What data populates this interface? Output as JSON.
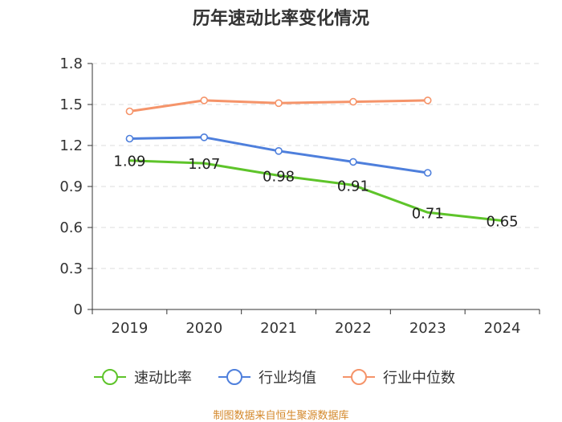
{
  "chart_data": {
    "type": "line",
    "title": "历年速动比率变化情况",
    "xlabel": "",
    "ylabel": "",
    "categories": [
      "2019",
      "2020",
      "2021",
      "2022",
      "2023",
      "2024"
    ],
    "ylim": [
      0,
      1.8
    ],
    "yticks": [
      "0",
      "0.3",
      "0.6",
      "0.9",
      "1.2",
      "1.5",
      "1.8"
    ],
    "grid": true,
    "legend_position": "bottom",
    "series": [
      {
        "name": "速动比率",
        "color": "#5ec42a",
        "values": [
          1.09,
          1.07,
          0.98,
          0.91,
          0.71,
          0.65
        ],
        "labels": [
          "1.09",
          "1.07",
          "0.98",
          "0.91",
          "0.71",
          "0.65"
        ]
      },
      {
        "name": "行业均值",
        "color": "#4e7fdc",
        "values": [
          1.25,
          1.26,
          1.16,
          1.08,
          1.0,
          null
        ]
      },
      {
        "name": "行业中位数",
        "color": "#f5946a",
        "values": [
          1.45,
          1.53,
          1.51,
          1.52,
          1.53,
          null
        ]
      }
    ],
    "source": "制图数据来自恒生聚源数据库"
  }
}
